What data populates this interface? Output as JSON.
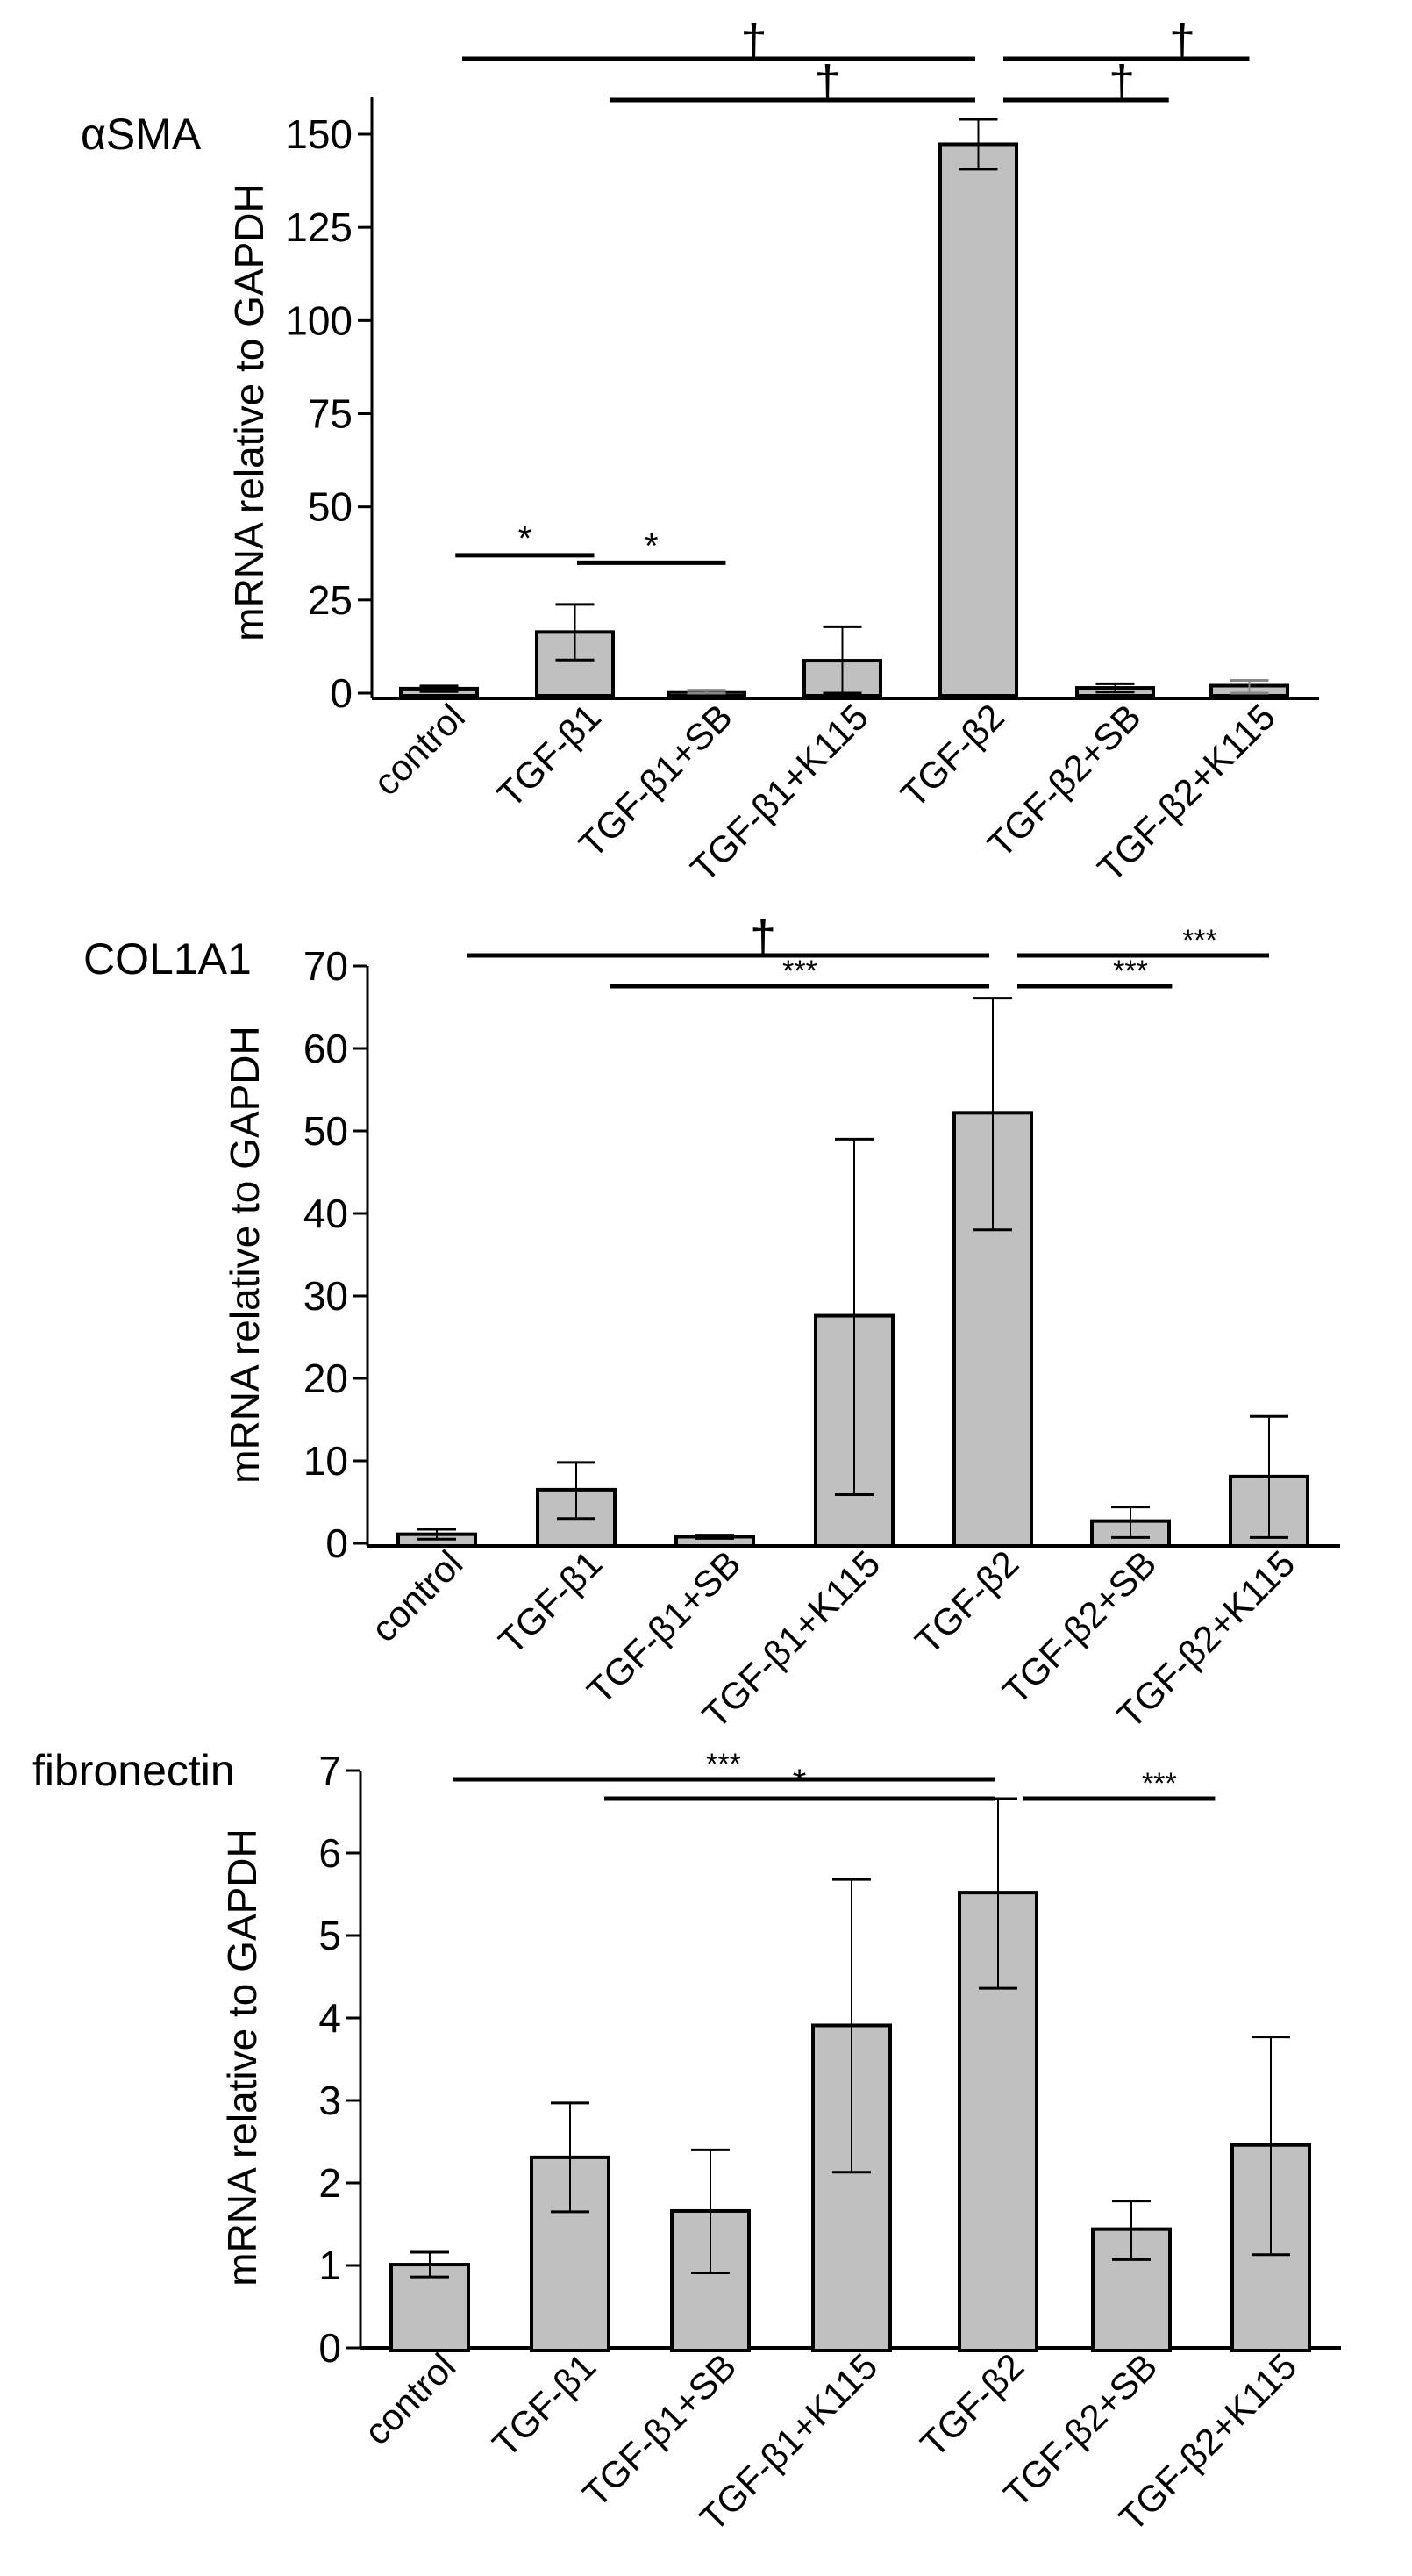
{
  "chart_data": [
    {
      "type": "bar",
      "title": "αSMA",
      "ylabel": "mRNA relative to GAPDH",
      "xlabel": "",
      "ylim": [
        0,
        160
      ],
      "yticks": [
        0,
        25,
        50,
        75,
        100,
        125,
        150
      ],
      "grid": false,
      "legend": "none",
      "categories": [
        "control",
        "TGF-β1",
        "TGF-β1+SB",
        "TGF-β1+K115",
        "TGF-β2",
        "TGF-β2+SB",
        "TGF-β2+K115"
      ],
      "values": [
        1.2,
        16.4,
        0.3,
        8.7,
        147.3,
        1.4,
        2.0
      ],
      "error_low": [
        0.4,
        8.9,
        0.0,
        0.0,
        140.6,
        0.3,
        0.0
      ],
      "error_high": [
        1.9,
        23.8,
        0.8,
        17.8,
        154.0,
        2.5,
        3.4
      ],
      "error_color": [
        "#000000",
        "#000000",
        "#888888",
        "#000000",
        "#000000",
        "#000000",
        "#888888"
      ],
      "significance": [
        {
          "from": 0,
          "to": 4,
          "label": "†",
          "level": 1
        },
        {
          "from": 1,
          "to": 4,
          "label": "†",
          "level": 2
        },
        {
          "from": 4.6,
          "to": 6.1,
          "label": "†",
          "level": 1,
          "tick_at": 5.5
        },
        {
          "from": 4.6,
          "to": 5.4,
          "label": "†",
          "level": 2,
          "tick_at": 5.05
        },
        {
          "from": 0.25,
          "to": 1.0,
          "label": "*",
          "inplot_value": 37
        },
        {
          "from": 1.15,
          "to": 2.0,
          "label": "*",
          "inplot_value": 35
        }
      ]
    },
    {
      "type": "bar",
      "title": "COL1A1",
      "ylabel": "mRNA relative to GAPDH",
      "xlabel": "",
      "ylim": [
        0,
        70
      ],
      "yticks": [
        0,
        10,
        20,
        30,
        40,
        50,
        60,
        70
      ],
      "grid": false,
      "legend": "none",
      "categories": [
        "control",
        "TGF-β1",
        "TGF-β1+SB",
        "TGF-β1+K115",
        "TGF-β2",
        "TGF-β2+SB",
        "TGF-β2+K115"
      ],
      "values": [
        1.1,
        6.5,
        0.8,
        27.6,
        52.2,
        2.7,
        8.1
      ],
      "error_low": [
        0.5,
        3.0,
        0.6,
        5.9,
        38.0,
        0.7,
        0.7
      ],
      "error_high": [
        1.7,
        9.8,
        1.0,
        49.0,
        66.1,
        4.4,
        15.4
      ],
      "error_color": [
        "#000000",
        "#000000",
        "#000000",
        "#000000",
        "#000000",
        "#000000",
        "#000000"
      ],
      "significance": [
        {
          "from": 0,
          "to": 4,
          "label": "†",
          "level": 1
        },
        {
          "from": 1,
          "to": 4,
          "label": "***",
          "level": 2
        },
        {
          "from": 4.6,
          "to": 6.15,
          "label": "***",
          "level": 1,
          "tick_at": 5.5
        },
        {
          "from": 4.6,
          "to": 5.3,
          "label": "***",
          "level": 2,
          "tick_at": 5.0
        }
      ]
    },
    {
      "type": "bar",
      "title": "fibronectin",
      "ylabel": "mRNA relative to GAPDH",
      "xlabel": "",
      "ylim": [
        0,
        7
      ],
      "yticks": [
        0,
        1,
        2,
        3,
        4,
        5,
        6,
        7
      ],
      "grid": false,
      "legend": "none",
      "categories": [
        "control",
        "TGF-β1",
        "TGF-β1+SB",
        "TGF-β1+K115",
        "TGF-β2",
        "TGF-β2+SB",
        "TGF-β2+K115"
      ],
      "values": [
        1.01,
        2.31,
        1.66,
        3.91,
        5.52,
        1.44,
        2.46
      ],
      "error_low": [
        0.86,
        1.65,
        0.91,
        2.13,
        4.36,
        1.07,
        1.13
      ],
      "error_high": [
        1.16,
        2.97,
        2.4,
        5.68,
        6.66,
        1.78,
        3.77
      ],
      "error_color": [
        "#000000",
        "#000000",
        "#000000",
        "#000000",
        "#000000",
        "#000000",
        "#000000"
      ],
      "significance": [
        {
          "from": 0,
          "to": 4,
          "label": "***",
          "level": 1
        },
        {
          "from": 1,
          "to": 4,
          "label": "*",
          "level": 2
        },
        {
          "from": 4.85,
          "to": 5.6,
          "label": "***",
          "level": 2,
          "tick_at": 5.2
        }
      ]
    }
  ],
  "colors": {
    "bar_fill": "#c0c0c0",
    "bar_stroke": "#000000",
    "axis": "#000000",
    "text": "#000000"
  }
}
